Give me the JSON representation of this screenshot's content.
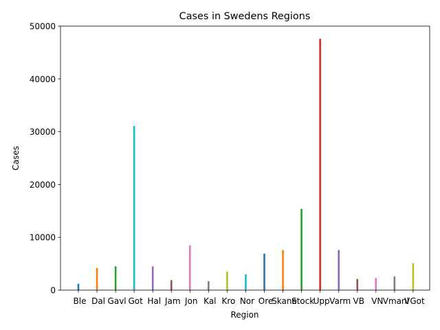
{
  "chart_data": {
    "type": "bar",
    "title": "Cases in Swedens Regions",
    "xlabel": "Region",
    "ylabel": "Cases",
    "ylim": [
      0,
      50000
    ],
    "yticks": [
      0,
      10000,
      20000,
      30000,
      40000,
      50000
    ],
    "grid": false,
    "legend": "none",
    "categories": [
      "Ble",
      "Dal",
      "Gavl",
      "Got",
      "Hal",
      "Jam",
      "Jon",
      "Kal",
      "Kro",
      "Nor",
      "Ore",
      "Skane",
      "Stock",
      "Upp",
      "Varm",
      "VB",
      "VN",
      "Vmanl",
      "VGot"
    ],
    "values": [
      1200,
      4200,
      4500,
      31100,
      4500,
      1900,
      8500,
      1700,
      3500,
      3000,
      6900,
      7600,
      15400,
      47600,
      7600,
      2100,
      2300,
      2600,
      5100
    ],
    "colors": [
      "#1f77b4",
      "#ff7f0e",
      "#2ca02c",
      "#17becf",
      "#9467bd",
      "#8c564b",
      "#e377c2",
      "#7f7f7f",
      "#bcbd22",
      "#17becf",
      "#1f77b4",
      "#ff7f0e",
      "#2ca02c",
      "#d62728",
      "#9467bd",
      "#8c564b",
      "#e377c2",
      "#7f7f7f",
      "#bcbd22"
    ]
  }
}
